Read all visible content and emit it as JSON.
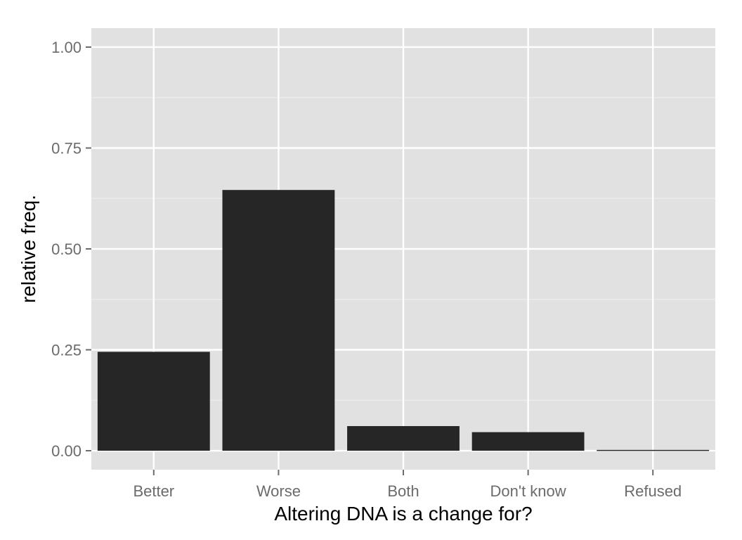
{
  "chart_data": {
    "type": "bar",
    "title": "",
    "xlabel": "Altering DNA is a change for?",
    "ylabel": "relative freq.",
    "categories": [
      "Better",
      "Worse",
      "Both",
      "Don't know",
      "Refused"
    ],
    "values": [
      0.245,
      0.646,
      0.061,
      0.046,
      0.002
    ],
    "ylim": [
      -0.047,
      1.047
    ],
    "yticks": [
      0,
      0.25,
      0.5,
      0.75,
      1.0
    ],
    "ytick_labels": [
      "0.00",
      "0.25",
      "0.50",
      "0.75",
      "1.00"
    ],
    "grid": true,
    "legend": "none",
    "colors": {
      "bar": "#262626",
      "panel": "#e1e1e1",
      "grid_major": "#ffffff",
      "grid_minor": "#ececec",
      "tick": "#6b6b6b"
    }
  }
}
